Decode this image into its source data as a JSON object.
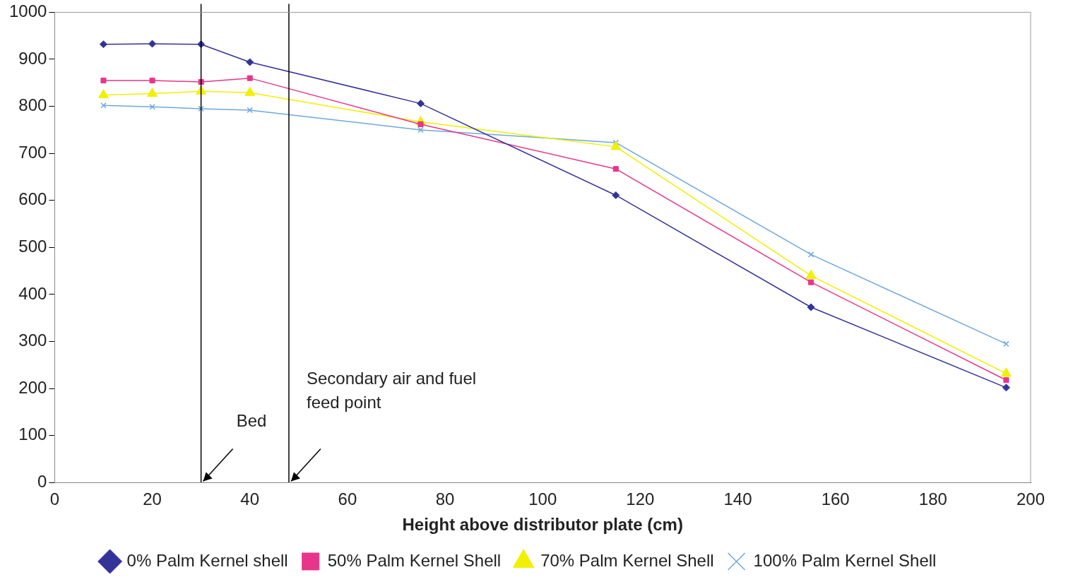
{
  "chart_data": {
    "type": "line",
    "xlabel": "Height above distributor plate (cm)",
    "x": [
      10,
      20,
      30,
      40,
      75,
      115,
      155,
      195
    ],
    "series": [
      {
        "name": "0% Palm Kernel shell",
        "color": "#333399",
        "marker": "diamond",
        "values": [
          932,
          933,
          932,
          894,
          806,
          611,
          373,
          202
        ]
      },
      {
        "name": "50% Palm Kernel Shell",
        "color": "#e8358c",
        "marker": "square",
        "values": [
          855,
          855,
          852,
          860,
          762,
          667,
          426,
          218
        ]
      },
      {
        "name": "70% Palm Kernel Shell",
        "color": "#f0f000",
        "marker": "triangle",
        "values": [
          824,
          827,
          832,
          829,
          767,
          714,
          440,
          232
        ]
      },
      {
        "name": "100% Palm Kernel Shell",
        "color": "#6fa8dc",
        "marker": "cross",
        "values": [
          802,
          799,
          795,
          792,
          750,
          723,
          485,
          295
        ]
      }
    ],
    "xlim": [
      0,
      200
    ],
    "xticks": [
      0,
      20,
      40,
      60,
      80,
      100,
      120,
      140,
      160,
      180,
      200
    ],
    "ylim": [
      0,
      1000
    ],
    "yticks": [
      0,
      100,
      200,
      300,
      400,
      500,
      600,
      700,
      800,
      900,
      1000
    ],
    "grid": false,
    "legend": "bottom",
    "ref_lines": [
      {
        "axis": "x",
        "value": 30,
        "label": "Bed",
        "color": "#000000"
      },
      {
        "axis": "x",
        "value": 48,
        "label": "Secondary air and fuel feed point",
        "color": "#000000"
      }
    ]
  }
}
